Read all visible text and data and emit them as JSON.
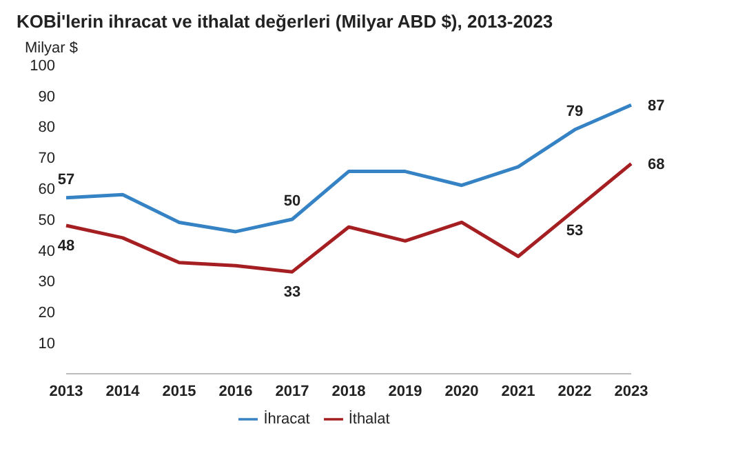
{
  "chart_data": {
    "type": "line",
    "title": "KOBİ'lerin ihracat ve ithalat değerleri (Milyar ABD $), 2013-2023",
    "ylabel": "Milyar $",
    "categories": [
      "2013",
      "2014",
      "2015",
      "2016",
      "2017",
      "2018",
      "2019",
      "2020",
      "2021",
      "2022",
      "2023"
    ],
    "series": [
      {
        "name": "İhracat",
        "color": "#3582c4",
        "values": [
          57,
          58,
          49,
          46,
          50,
          65.5,
          65.5,
          61,
          67,
          79,
          87
        ],
        "value_labels": [
          "57",
          null,
          null,
          null,
          "50",
          null,
          null,
          null,
          null,
          "79",
          "87"
        ]
      },
      {
        "name": "İthalat",
        "color": "#a51f22",
        "values": [
          48,
          44,
          36,
          35,
          33,
          47.5,
          43,
          49,
          38,
          53,
          68
        ],
        "value_labels": [
          "48",
          null,
          null,
          null,
          "33",
          null,
          null,
          null,
          null,
          "53",
          "68"
        ]
      }
    ],
    "ylim": [
      0,
      100
    ],
    "yticks": [
      10,
      20,
      30,
      40,
      50,
      60,
      70,
      80,
      90,
      100
    ],
    "grid": false,
    "legend": "bottom",
    "marker": "none",
    "line_style": "solid"
  }
}
